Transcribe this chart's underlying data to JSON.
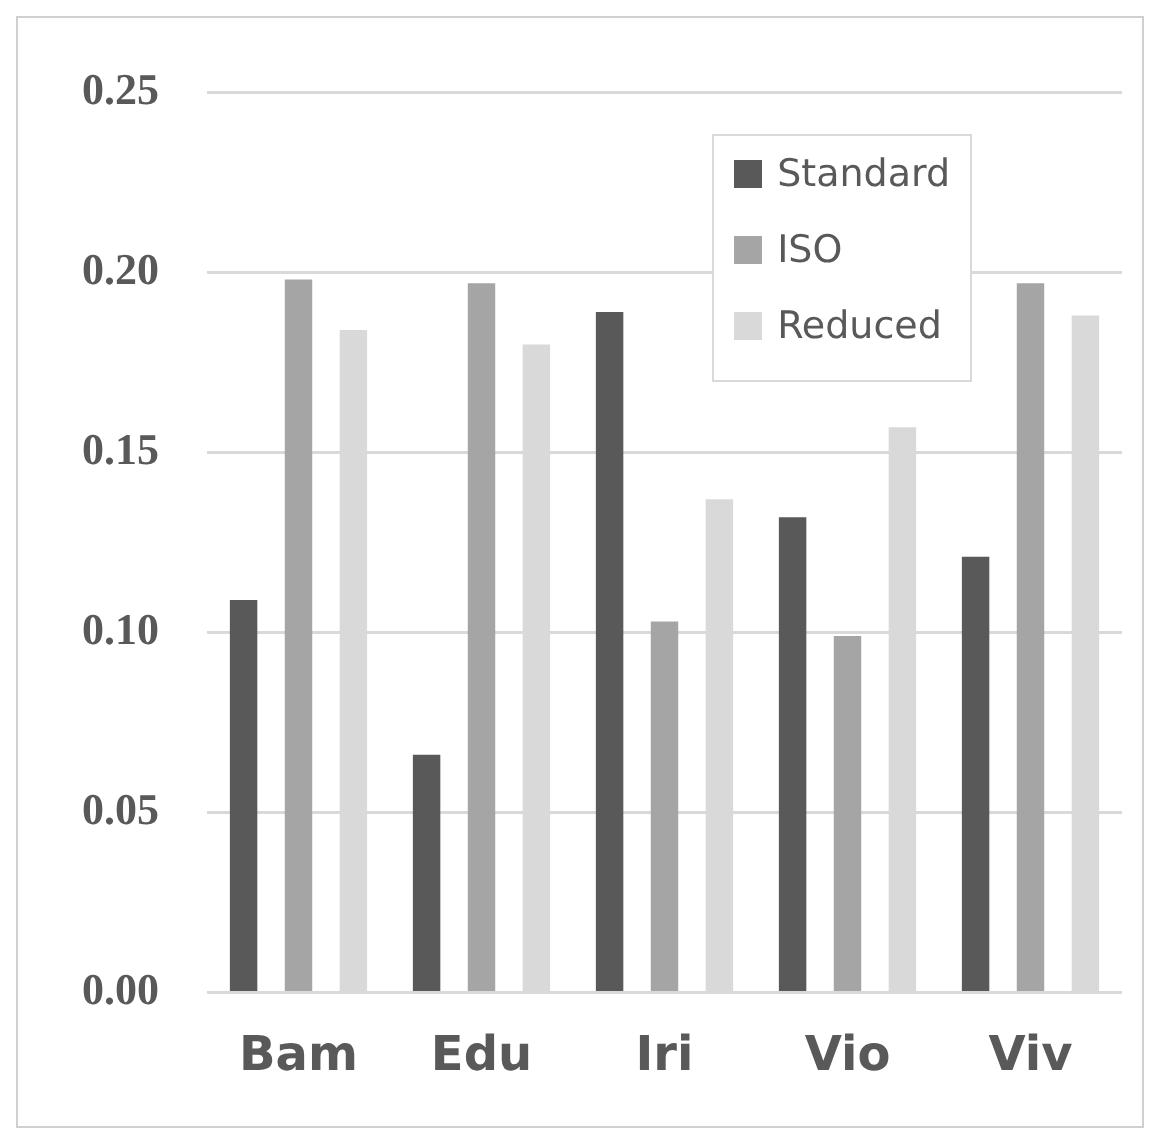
{
  "chart_data": {
    "type": "bar",
    "categories": [
      "Bam",
      "Edu",
      "Iri",
      "Vio",
      "Viv"
    ],
    "series": [
      {
        "name": "Standard",
        "color": "#595959",
        "values": [
          0.109,
          0.066,
          0.189,
          0.132,
          0.121
        ]
      },
      {
        "name": "ISO",
        "color": "#a5a5a5",
        "values": [
          0.198,
          0.197,
          0.103,
          0.099,
          0.197
        ]
      },
      {
        "name": "Reduced",
        "color": "#d9d9d9",
        "values": [
          0.184,
          0.18,
          0.137,
          0.157,
          0.188
        ]
      }
    ],
    "ylim": [
      0,
      0.25
    ],
    "yticks": [
      {
        "value": 0,
        "label": "0.00"
      },
      {
        "value": 0.05,
        "label": "0.05"
      },
      {
        "value": 0.1,
        "label": "0.10"
      },
      {
        "value": 0.15,
        "label": "0.15"
      },
      {
        "value": 0.2,
        "label": "0.20"
      },
      {
        "value": 0.25,
        "label": "0.25"
      }
    ],
    "grid": "y",
    "legend": "top right"
  }
}
